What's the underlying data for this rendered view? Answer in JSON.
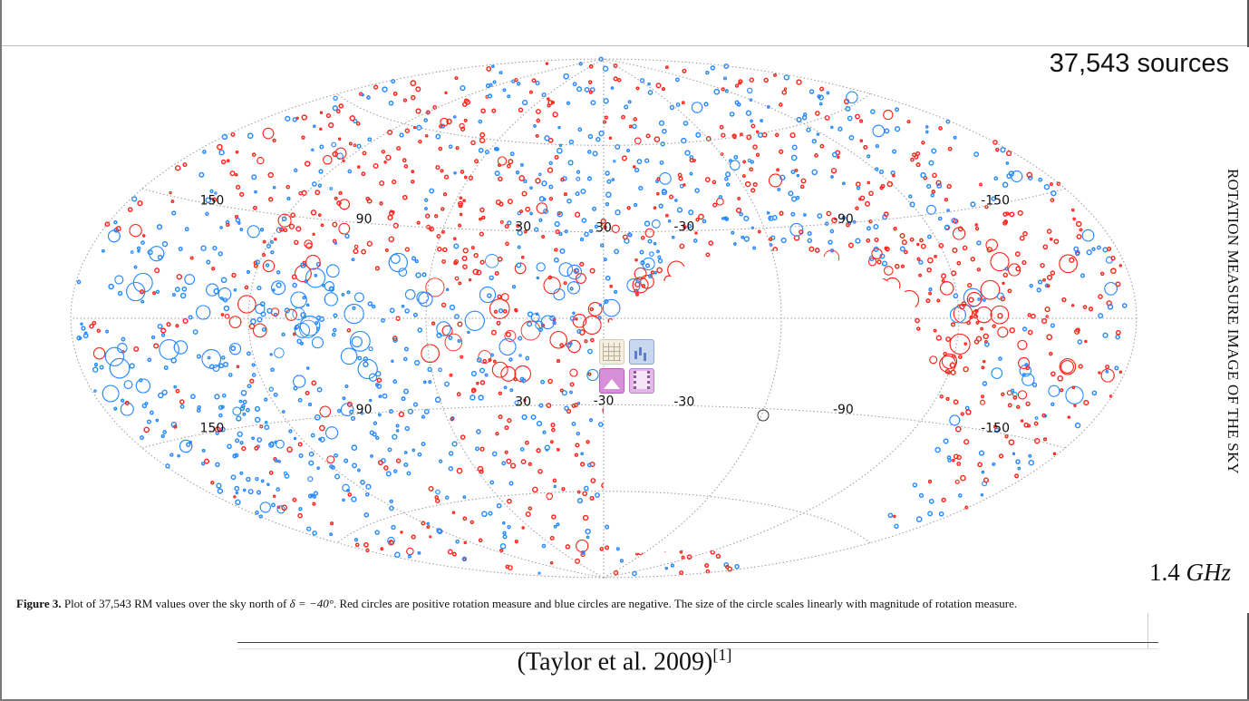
{
  "source_count": "37,543 sources",
  "side_title": "ROTATION MEASURE IMAGE OF THE SKY",
  "frequency": {
    "value": "1.4",
    "unit": "GHz"
  },
  "caption": {
    "label": "Figure 3.",
    "text_before_math": " Plot of 37,543 RM values over the sky north of ",
    "math": "δ = −40°",
    "text_after_math": ". Red circles are positive rotation measure and blue circles are negative. The size of the circle scales linearly with magnitude of rotation measure."
  },
  "citation": {
    "text": "(Taylor et al. 2009)",
    "ref": "[1]"
  },
  "colors": {
    "positive_rm": "#ff2a1f",
    "negative_rm": "#2b8cff",
    "grid": "#9a9a9a"
  },
  "icons": [
    "table-icon",
    "chart-icon",
    "image-icon",
    "film-icon"
  ],
  "chart_data": {
    "type": "scatter",
    "projection": "aitoff",
    "n_sources": 37543,
    "coordinate": "galactic",
    "excluded_region": "south of δ = −40° (blank)",
    "longitude_labels": [
      "150",
      "90",
      "30",
      "-30",
      "-90",
      "-150"
    ],
    "latitude_labels": [
      "30",
      "-30"
    ],
    "series": [
      {
        "name": "Red circles are positive rotation measure",
        "color": "#ff2a1f"
      },
      {
        "name": "blue circles are negative",
        "color": "#2b8cff"
      }
    ],
    "marker_size": "scales linearly with magnitude of rotation measure",
    "grid_labels": [
      {
        "text": "150",
        "l": 150,
        "b": 30
      },
      {
        "text": "90",
        "l": 90,
        "b": 30
      },
      {
        "text": "30",
        "l": 30,
        "b": 30
      },
      {
        "text": "-30",
        "l": -30,
        "b": 30
      },
      {
        "text": "-90",
        "l": -90,
        "b": 30
      },
      {
        "text": "-150",
        "l": -150,
        "b": 30
      },
      {
        "text": "30",
        "l": 0,
        "b": 30
      },
      {
        "text": "150",
        "l": 150,
        "b": -30
      },
      {
        "text": "90",
        "l": 90,
        "b": -30
      },
      {
        "text": "30",
        "l": 30,
        "b": -30
      },
      {
        "text": "-30",
        "l": -30,
        "b": -30
      },
      {
        "text": "-90",
        "l": -90,
        "b": -30
      },
      {
        "text": "-150",
        "l": -150,
        "b": -30
      },
      {
        "text": "-30",
        "l": 0,
        "b": -30
      }
    ]
  }
}
